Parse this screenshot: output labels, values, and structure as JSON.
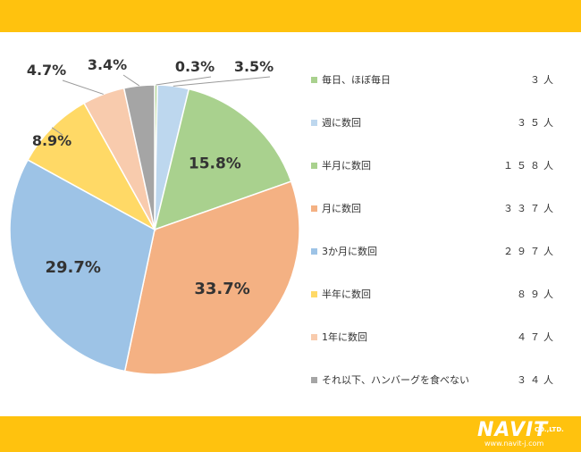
{
  "colors": {
    "bar": "#FFC20E",
    "green": "#A9D18E",
    "blue_light": "#BDD7EE",
    "orange": "#F4B183",
    "blue": "#9DC3E6",
    "yellow": "#FFD966",
    "peach": "#F8CBAD",
    "gray": "#A5A5A5"
  },
  "logo": {
    "name": "NAVIT",
    "suffix": "CO.,LTD.",
    "url": "www.navit-j.com"
  },
  "chart_data": {
    "type": "pie",
    "slices": [
      {
        "label": "毎日、ほぼ毎日",
        "count_text": "３人",
        "percent": 0.3,
        "percent_text": "0.3%",
        "color": "#A9D18E"
      },
      {
        "label": "週に数回",
        "count_text": "３５人",
        "percent": 3.5,
        "percent_text": "3.5%",
        "color": "#BDD7EE"
      },
      {
        "label": "半月に数回",
        "count_text": "１５８人",
        "percent": 15.8,
        "percent_text": "15.8%",
        "color": "#A9D18E"
      },
      {
        "label": "月に数回",
        "count_text": "３３７人",
        "percent": 33.7,
        "percent_text": "33.7%",
        "color": "#F4B183"
      },
      {
        "label": "3か月に数回",
        "count_text": "２９７人",
        "percent": 29.7,
        "percent_text": "29.7%",
        "color": "#9DC3E6"
      },
      {
        "label": "半年に数回",
        "count_text": "８９人",
        "percent": 8.9,
        "percent_text": "8.9%",
        "color": "#FFD966"
      },
      {
        "label": "1年に数回",
        "count_text": "４７人",
        "percent": 4.7,
        "percent_text": "4.7%",
        "color": "#F8CBAD"
      },
      {
        "label": "それ以下、ハンバーグを食べない",
        "count_text": "３４人",
        "percent": 3.4,
        "percent_text": "3.4%",
        "color": "#A5A5A5"
      }
    ],
    "legend_position": "right"
  }
}
